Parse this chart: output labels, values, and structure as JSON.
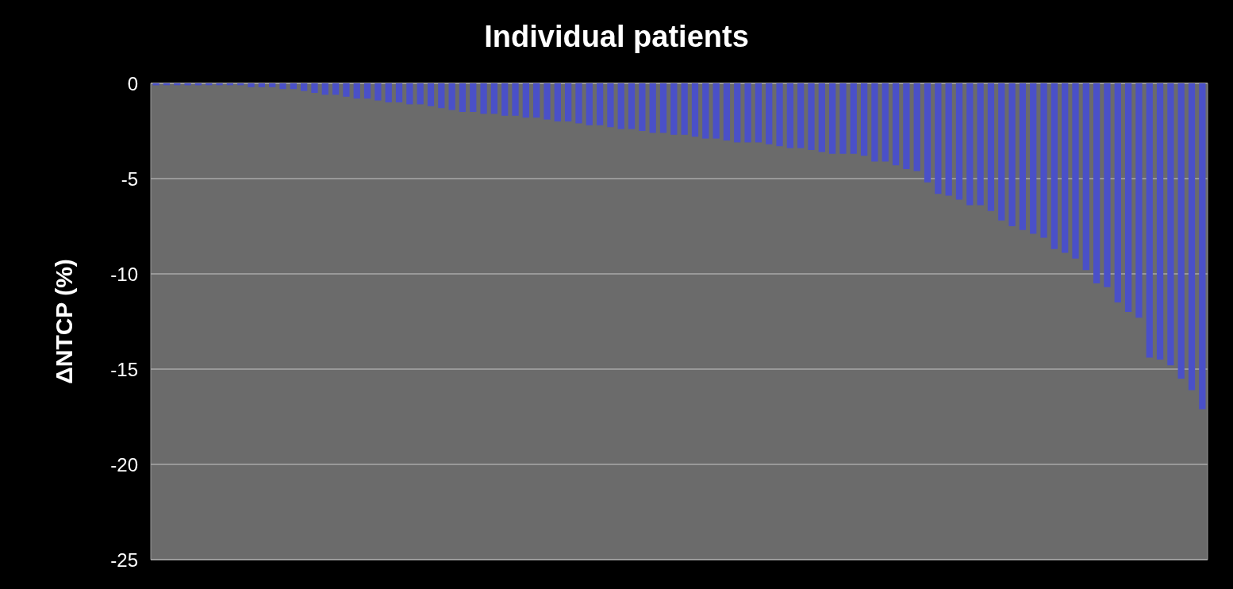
{
  "chart_data": {
    "type": "bar",
    "title": "Individual patients",
    "ylabel": "ΔNTCP (%)",
    "categories": [
      null,
      null,
      null,
      null,
      null,
      null,
      null,
      null,
      null,
      null,
      null,
      null,
      null,
      null,
      null,
      null,
      null,
      null,
      null,
      null,
      null,
      null,
      null,
      null,
      null,
      null,
      null,
      null,
      null,
      null,
      null,
      null,
      null,
      null,
      null,
      null,
      null,
      null,
      null,
      null,
      null,
      null,
      null,
      null,
      null,
      null,
      null,
      null,
      null,
      null,
      null,
      null,
      null,
      null,
      null,
      null,
      null,
      null,
      null,
      null,
      null,
      null,
      null,
      null,
      null,
      null,
      null,
      null,
      null,
      null,
      null,
      null,
      null,
      null,
      null,
      null,
      null,
      null,
      null,
      null,
      null,
      null,
      null,
      null,
      null,
      null,
      null,
      null,
      null,
      null,
      null,
      null,
      null,
      null,
      null,
      null,
      null,
      null,
      null,
      null
    ],
    "values": [
      -0.1,
      -0.1,
      -0.1,
      -0.1,
      -0.1,
      -0.1,
      -0.1,
      -0.1,
      -0.1,
      -0.2,
      -0.2,
      -0.2,
      -0.3,
      -0.3,
      -0.4,
      -0.5,
      -0.6,
      -0.6,
      -0.7,
      -0.8,
      -0.8,
      -0.9,
      -1.0,
      -1.0,
      -1.1,
      -1.1,
      -1.2,
      -1.3,
      -1.4,
      -1.5,
      -1.5,
      -1.6,
      -1.6,
      -1.7,
      -1.7,
      -1.8,
      -1.8,
      -1.9,
      -2.0,
      -2.0,
      -2.1,
      -2.2,
      -2.2,
      -2.3,
      -2.4,
      -2.4,
      -2.5,
      -2.6,
      -2.6,
      -2.7,
      -2.7,
      -2.8,
      -2.9,
      -2.9,
      -3.0,
      -3.1,
      -3.1,
      -3.1,
      -3.2,
      -3.3,
      -3.4,
      -3.4,
      -3.5,
      -3.6,
      -3.7,
      -3.7,
      -3.7,
      -3.8,
      -4.1,
      -4.1,
      -4.3,
      -4.5,
      -4.6,
      -5.2,
      -5.8,
      -5.9,
      -6.1,
      -6.4,
      -6.4,
      -6.7,
      -7.2,
      -7.5,
      -7.7,
      -7.9,
      -8.1,
      -8.7,
      -8.9,
      -9.2,
      -9.8,
      -10.5,
      -10.7,
      -11.5,
      -12.0,
      -12.3,
      -14.4,
      -14.5,
      -14.8,
      -15.5,
      -16.1,
      -17.1
    ],
    "color": "#4a50c8",
    "ylim": [
      -25,
      0
    ],
    "yticks": [
      -25,
      -20,
      -15,
      -10,
      -5,
      0
    ],
    "grid": "y"
  }
}
